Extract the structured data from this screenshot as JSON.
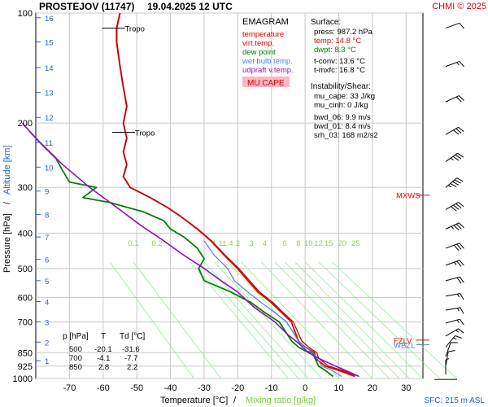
{
  "header": {
    "station": "PROSTEJOV (11747)",
    "datetime": "19.04.2025 12 UTC",
    "copyright": "CHMI © 2025"
  },
  "legend": {
    "title": "EMAGRAM",
    "items": [
      {
        "label": "temperature",
        "color": "#e00000"
      },
      {
        "label": "virt.temp.",
        "color": "#e00000"
      },
      {
        "label": "dew point",
        "color": "#008000"
      },
      {
        "label": "wet bulb temp.",
        "color": "#4a7fe0"
      },
      {
        "label": "udpraft v.temp.",
        "color": "#9010c0"
      }
    ],
    "badge": "MU CAPE",
    "badge_color": "#ffb6c1"
  },
  "surface": {
    "title": "Surface:",
    "press": "press: 987.2 hPa",
    "temp": "temp: 14.8 °C",
    "dwpt": "dwpt: 8.3 °C",
    "tconv": "t-conv: 13.6 °C",
    "tmxfc": "t-mxfc: 16.8 °C"
  },
  "instability": {
    "title": "Instability/Shear:",
    "mu_cape": "mu_cape: 33 J/kg",
    "mu_cinh": "mu_cinh: 0 J/kg",
    "bwd_06": "bwd_06: 9.9 m/s",
    "bwd_01": "bwd_01: 8.4 m/s",
    "srh_03": "srh_03: 168 m2/s2"
  },
  "table": {
    "headers": [
      "p [hPa]",
      "T",
      "Td [°C]"
    ],
    "rows": [
      [
        "500",
        "-20.1",
        "-31.6"
      ],
      [
        "700",
        "-4.1",
        "-7.7"
      ],
      [
        "850",
        "2.8",
        "2.2"
      ]
    ]
  },
  "footer": {
    "sfc": "SFC: 215 m ASL"
  },
  "chart_data": {
    "type": "line",
    "xlabel": "Temperature [°C]",
    "xlabel_sep": "/",
    "xlabel2": "Mixing ratio [g/kg]",
    "ylabel": "Pressure [hPa]",
    "ylabel_sep": "/",
    "ylabel2": "Altitude [km]",
    "xlim": [
      -80,
      35
    ],
    "ylim": [
      1000,
      100
    ],
    "y_scale": "log",
    "x_ticks": [
      -70,
      -60,
      -50,
      -40,
      -30,
      -20,
      -10,
      0,
      10,
      20,
      30
    ],
    "p_ticks": [
      100,
      200,
      300,
      400,
      500,
      600,
      700,
      850,
      925,
      1000
    ],
    "alt_ticks": [
      {
        "label": "1",
        "p": 894
      },
      {
        "label": "2",
        "p": 795
      },
      {
        "label": "3",
        "p": 700
      },
      {
        "label": "4",
        "p": 616
      },
      {
        "label": "5",
        "p": 540
      },
      {
        "label": "6",
        "p": 472
      },
      {
        "label": "7",
        "p": 410
      },
      {
        "label": "8",
        "p": 356
      },
      {
        "label": "9",
        "p": 307
      },
      {
        "label": "10",
        "p": 264
      },
      {
        "label": "11",
        "p": 226
      },
      {
        "label": "12",
        "p": 193
      },
      {
        "label": "13",
        "p": 165
      },
      {
        "label": "14",
        "p": 141
      },
      {
        "label": "15",
        "p": 120
      },
      {
        "label": "16",
        "p": 103
      }
    ],
    "mixing_ratio": {
      "labels": [
        "0.1",
        "0.2",
        "1",
        "1",
        "1.4",
        "2",
        "3",
        "4",
        "6",
        "8",
        "10",
        "12",
        "15",
        "20",
        "25"
      ],
      "label_x": [
        -51,
        -44,
        -27,
        -25,
        -23,
        -20,
        -16,
        -12,
        -6,
        -2,
        1,
        4,
        7,
        11,
        15
      ],
      "label_p": 425,
      "base_x": [
        -58,
        -51,
        -34,
        -32,
        -30,
        -27,
        -23,
        -19,
        -13,
        -9,
        -6,
        -3,
        0,
        4,
        8
      ],
      "top_p": 480,
      "bottom_p": 1000,
      "bottom_x": [
        -33,
        -25,
        -5,
        -2,
        1,
        5,
        10,
        14,
        20,
        25,
        28,
        31,
        35,
        40,
        45
      ],
      "color": "#90ee90"
    },
    "annotations": [
      {
        "label": "Tropo",
        "p": 110,
        "x": -55,
        "color": "#000000"
      },
      {
        "label": "Tropo",
        "p": 212,
        "x": -52,
        "color": "#000000"
      },
      {
        "label": "MXWS",
        "p": 315,
        "color": "#e00000"
      },
      {
        "label": "FZLV",
        "p": 785,
        "color": "#e00000"
      },
      {
        "label": "WBZL",
        "p": 808,
        "color": "#4a7fe0"
      }
    ],
    "series": [
      {
        "name": "temperature",
        "color": "#e00000",
        "points": [
          [
            14.8,
            987
          ],
          [
            10,
            950
          ],
          [
            6,
            925
          ],
          [
            3,
            880
          ],
          [
            2.8,
            850
          ],
          [
            0,
            820
          ],
          [
            -2,
            790
          ],
          [
            -4.1,
            700
          ],
          [
            -7,
            660
          ],
          [
            -10,
            620
          ],
          [
            -14,
            580
          ],
          [
            -17,
            540
          ],
          [
            -20.1,
            500
          ],
          [
            -24,
            460
          ],
          [
            -28,
            420
          ],
          [
            -32,
            390
          ],
          [
            -37,
            360
          ],
          [
            -41,
            340
          ],
          [
            -46,
            320
          ],
          [
            -52,
            300
          ],
          [
            -54,
            280
          ],
          [
            -53,
            260
          ],
          [
            -54,
            240
          ],
          [
            -53,
            220
          ],
          [
            -54,
            200
          ],
          [
            -53,
            180
          ],
          [
            -54,
            160
          ],
          [
            -55,
            140
          ],
          [
            -56,
            120
          ],
          [
            -56,
            110
          ],
          [
            -55,
            100
          ]
        ]
      },
      {
        "name": "virt.temp.",
        "color": "#c00000",
        "points": [
          [
            16,
            987
          ],
          [
            11,
            950
          ],
          [
            7,
            925
          ],
          [
            4,
            880
          ],
          [
            3.5,
            850
          ],
          [
            1,
            820
          ],
          [
            -1,
            790
          ],
          [
            -3.5,
            700
          ],
          [
            -6.5,
            660
          ],
          [
            -9.5,
            620
          ],
          [
            -13.5,
            580
          ],
          [
            -16.5,
            540
          ],
          [
            -19.7,
            500
          ],
          [
            -23.7,
            460
          ],
          [
            -27.8,
            420
          ],
          [
            -31.8,
            390
          ],
          [
            -36.9,
            360
          ],
          [
            -40.9,
            340
          ],
          [
            -45.9,
            320
          ],
          [
            -51.9,
            300
          ],
          [
            -53.9,
            280
          ],
          [
            -52.9,
            260
          ],
          [
            -53.9,
            240
          ],
          [
            -52.9,
            220
          ],
          [
            -53.9,
            200
          ],
          [
            -52.9,
            180
          ],
          [
            -53.9,
            160
          ],
          [
            -54.9,
            140
          ],
          [
            -55.9,
            120
          ],
          [
            -55.9,
            110
          ],
          [
            -54.9,
            100
          ]
        ]
      },
      {
        "name": "dew point",
        "color": "#008000",
        "points": [
          [
            8.3,
            987
          ],
          [
            6,
            950
          ],
          [
            4,
            925
          ],
          [
            2.2,
            850
          ],
          [
            0,
            840
          ],
          [
            -2,
            820
          ],
          [
            -4,
            790
          ],
          [
            -7.7,
            700
          ],
          [
            -12,
            660
          ],
          [
            -16,
            620
          ],
          [
            -22,
            580
          ],
          [
            -30,
            540
          ],
          [
            -31.6,
            500
          ],
          [
            -30,
            470
          ],
          [
            -32,
            440
          ],
          [
            -36,
            410
          ],
          [
            -40,
            390
          ],
          [
            -42,
            370
          ],
          [
            -48,
            350
          ],
          [
            -58,
            330
          ],
          [
            -66,
            320
          ],
          [
            -62,
            300
          ],
          [
            -70,
            290
          ],
          [
            -72,
            270
          ],
          [
            -74,
            250
          ],
          [
            -78,
            230
          ],
          [
            -82,
            210
          ]
        ]
      },
      {
        "name": "wet bulb temp.",
        "color": "#4a7fe0",
        "points": [
          [
            10.8,
            987
          ],
          [
            8,
            950
          ],
          [
            5,
            925
          ],
          [
            2.4,
            850
          ],
          [
            0,
            820
          ],
          [
            -2,
            790
          ],
          [
            -5.5,
            700
          ],
          [
            -9,
            660
          ],
          [
            -13,
            620
          ],
          [
            -17,
            580
          ],
          [
            -21,
            540
          ],
          [
            -23,
            500
          ],
          [
            -27,
            460
          ],
          [
            -30,
            420
          ]
        ]
      },
      {
        "name": "udpraft v.temp.",
        "color": "#9010c0",
        "points": [
          [
            16,
            987
          ],
          [
            12,
            950
          ],
          [
            9,
            925
          ],
          [
            4,
            880
          ],
          [
            1,
            850
          ],
          [
            -2,
            800
          ],
          [
            -5,
            760
          ],
          [
            -9,
            700
          ],
          [
            -15,
            640
          ],
          [
            -20,
            580
          ],
          [
            -25,
            540
          ],
          [
            -30,
            500
          ],
          [
            -36,
            460
          ],
          [
            -42,
            420
          ],
          [
            -49,
            380
          ],
          [
            -56,
            340
          ],
          [
            -64,
            300
          ],
          [
            -72,
            260
          ],
          [
            -80,
            220
          ],
          [
            -84,
            200
          ]
        ]
      }
    ],
    "wind_barbs": [
      {
        "p": 110,
        "dir": 250,
        "spd": 10
      },
      {
        "p": 140,
        "dir": 250,
        "spd": 15
      },
      {
        "p": 175,
        "dir": 245,
        "spd": 20
      },
      {
        "p": 215,
        "dir": 240,
        "spd": 30
      },
      {
        "p": 255,
        "dir": 235,
        "spd": 35
      },
      {
        "p": 300,
        "dir": 230,
        "spd": 45
      },
      {
        "p": 345,
        "dir": 240,
        "spd": 40
      },
      {
        "p": 390,
        "dir": 245,
        "spd": 35
      },
      {
        "p": 440,
        "dir": 250,
        "spd": 30
      },
      {
        "p": 490,
        "dir": 250,
        "spd": 25
      },
      {
        "p": 540,
        "dir": 255,
        "spd": 20
      },
      {
        "p": 595,
        "dir": 260,
        "spd": 15
      },
      {
        "p": 650,
        "dir": 260,
        "spd": 15
      },
      {
        "p": 705,
        "dir": 255,
        "spd": 15
      },
      {
        "p": 765,
        "dir": 240,
        "spd": 15
      },
      {
        "p": 820,
        "dir": 220,
        "spd": 15
      },
      {
        "p": 870,
        "dir": 200,
        "spd": 10
      },
      {
        "p": 925,
        "dir": 190,
        "spd": 10
      },
      {
        "p": 975,
        "dir": 180,
        "spd": 5
      }
    ]
  }
}
